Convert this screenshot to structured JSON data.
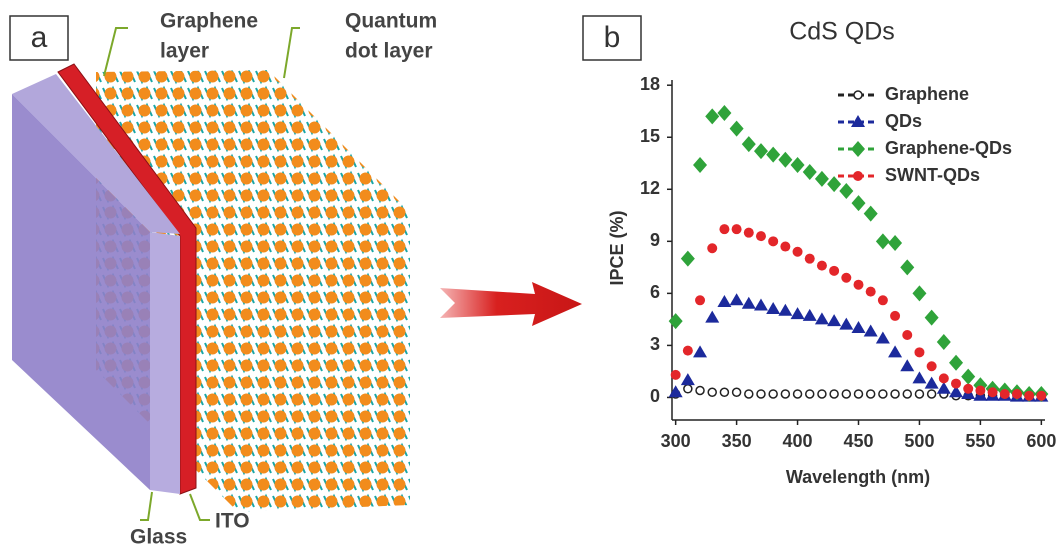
{
  "panel_a": {
    "label": "a",
    "graphene_label": [
      "Graphene",
      "layer"
    ],
    "qd_label": [
      "Quantum",
      "dot layer"
    ],
    "glass_label": "Glass",
    "ito_label": "ITO"
  },
  "chart_data": {
    "type": "scatter",
    "panel_label": "b",
    "title": "CdS QDs",
    "x_label": "Wavelength (nm)",
    "y_label": "IPCE (%)",
    "xlim": [
      297,
      603
    ],
    "ylim": [
      -1.3,
      18.3
    ],
    "xticks": [
      300,
      350,
      400,
      450,
      500,
      550,
      600
    ],
    "yticks": [
      0,
      3,
      6,
      9,
      12,
      15,
      18
    ],
    "legend": "upper right",
    "x": [
      300,
      310,
      320,
      330,
      340,
      350,
      360,
      370,
      380,
      390,
      400,
      410,
      420,
      430,
      440,
      450,
      460,
      470,
      480,
      490,
      500,
      510,
      520,
      530,
      540,
      550,
      560,
      570,
      580,
      590,
      600
    ],
    "series": [
      {
        "name": "Graphene",
        "color": "#222222",
        "marker": "open-circle",
        "values": [
          0.2,
          0.5,
          0.4,
          0.3,
          0.3,
          0.3,
          0.2,
          0.2,
          0.2,
          0.2,
          0.2,
          0.2,
          0.2,
          0.2,
          0.2,
          0.2,
          0.2,
          0.2,
          0.2,
          0.2,
          0.2,
          0.2,
          0.2,
          0.1,
          0.1,
          0.1,
          0.1,
          0.1,
          0.1,
          0.1,
          0.1
        ]
      },
      {
        "name": "QDs",
        "color": "#1c2a9c",
        "marker": "triangle",
        "values": [
          0.3,
          1.0,
          2.6,
          4.6,
          5.5,
          5.6,
          5.4,
          5.3,
          5.1,
          5.0,
          4.8,
          4.7,
          4.5,
          4.4,
          4.2,
          4.0,
          3.8,
          3.4,
          2.6,
          1.8,
          1.1,
          0.8,
          0.5,
          0.3,
          0.2,
          0.1,
          0.1,
          0.1,
          0.05,
          0.05,
          0.05
        ]
      },
      {
        "name": "Graphene-QDs",
        "color": "#2fa33a",
        "marker": "diamond",
        "values": [
          4.4,
          8.0,
          13.4,
          16.2,
          16.4,
          15.5,
          14.6,
          14.2,
          14.0,
          13.7,
          13.4,
          13.0,
          12.6,
          12.3,
          11.9,
          11.2,
          10.6,
          9.0,
          8.9,
          7.5,
          6.0,
          4.6,
          3.2,
          2.0,
          1.2,
          0.7,
          0.5,
          0.4,
          0.3,
          0.2,
          0.2
        ]
      },
      {
        "name": "SWNT-QDs",
        "color": "#e3262a",
        "marker": "circle",
        "values": [
          1.3,
          2.7,
          5.6,
          8.6,
          9.7,
          9.7,
          9.5,
          9.3,
          9.0,
          8.7,
          8.4,
          8.0,
          7.6,
          7.3,
          6.9,
          6.5,
          6.1,
          5.6,
          4.7,
          3.6,
          2.6,
          1.8,
          1.1,
          0.8,
          0.5,
          0.4,
          0.3,
          0.2,
          0.2,
          0.1,
          0.1
        ]
      }
    ]
  }
}
